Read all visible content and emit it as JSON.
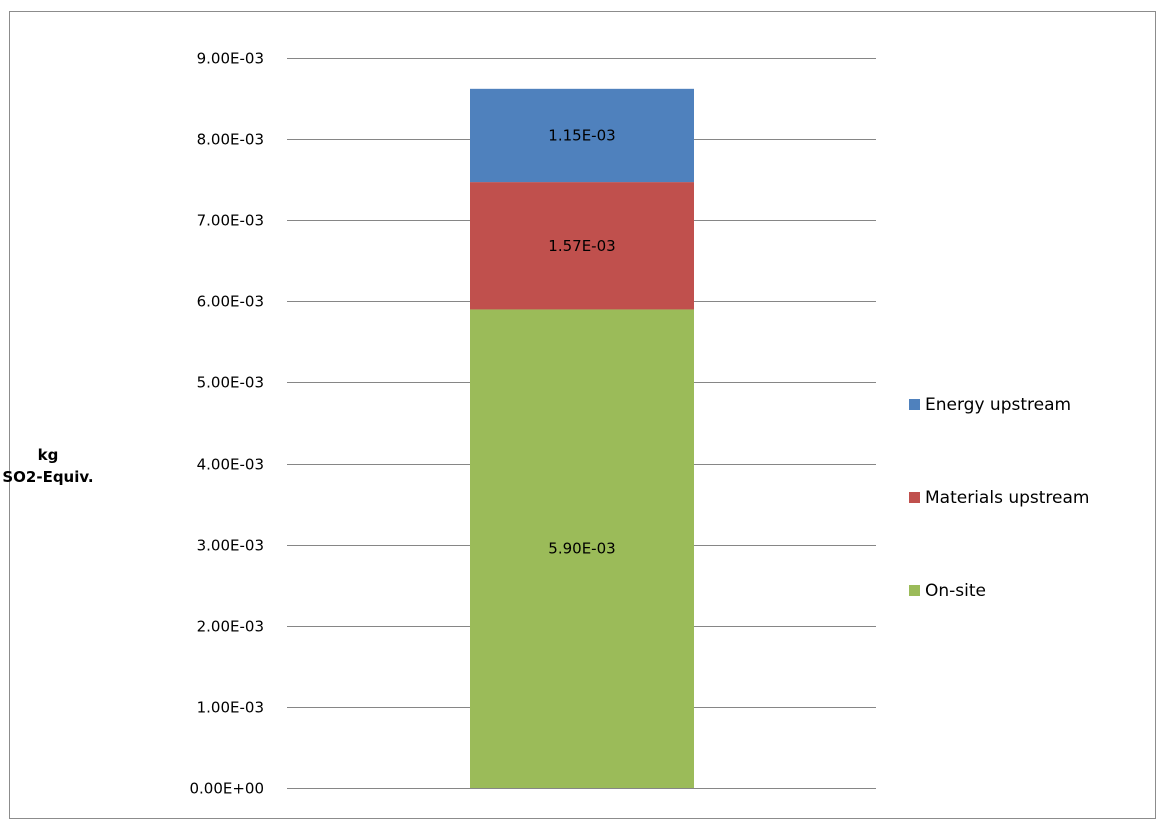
{
  "chart_data": {
    "type": "bar",
    "stacked": true,
    "categories": [
      ""
    ],
    "series": [
      {
        "name": "On-site",
        "values": [
          0.0059
        ],
        "label": "5.90E-03",
        "color": "#9BBB59"
      },
      {
        "name": "Materials upstream",
        "values": [
          0.00157
        ],
        "label": "1.57E-03",
        "color": "#C0504D"
      },
      {
        "name": "Energy upstream",
        "values": [
          0.00115
        ],
        "label": "1.15E-03",
        "color": "#4F81BD"
      }
    ],
    "ylabel": {
      "line1": "kg",
      "line2": "SO2-Equiv."
    },
    "xlabel": "",
    "ylim": [
      0,
      0.009
    ],
    "y_ticks": [
      {
        "value": 0.0,
        "label": "0.00E+00"
      },
      {
        "value": 0.001,
        "label": "1.00E-03"
      },
      {
        "value": 0.002,
        "label": "2.00E-03"
      },
      {
        "value": 0.003,
        "label": "3.00E-03"
      },
      {
        "value": 0.004,
        "label": "4.00E-03"
      },
      {
        "value": 0.005,
        "label": "5.00E-03"
      },
      {
        "value": 0.006,
        "label": "6.00E-03"
      },
      {
        "value": 0.007,
        "label": "7.00E-03"
      },
      {
        "value": 0.008,
        "label": "8.00E-03"
      },
      {
        "value": 0.009,
        "label": "9.00E-03"
      }
    ],
    "legend_order": [
      "Energy upstream",
      "Materials upstream",
      "On-site"
    ],
    "legend_position": "right",
    "grid": true,
    "gridline_color": "#868686"
  }
}
